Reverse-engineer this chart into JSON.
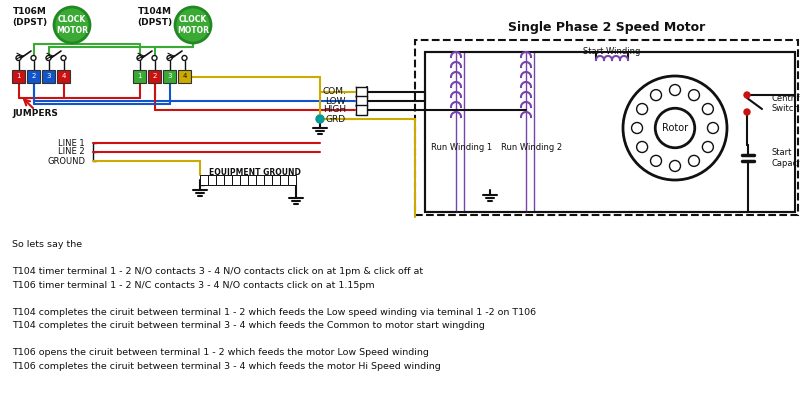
{
  "title": "Single Phase 2 Speed Motor",
  "bg_color": "#ffffff",
  "annotation_text": "So lets say the\n\nT104 timer terminal 1 - 2 N/O contacts 3 - 4 N/O contacts click on at 1pm & click off at\nT106 timer terminal 1 - 2 N/C contacts 3 - 4 N/O contacts click on at 1.15pm\n\nT104 completes the ciruit between terminal 1 - 2 which feeds the Low speed winding via teminal 1 -2 on T106\nT104 completes the ciruit between terminal 3 - 4 which feeds the Common to motor start wingding\n\nT106 opens the ciruit between terminal 1 - 2 which feeds the motor Low Speed winding\nT106 completes the ciruit between terminal 3 - 4 which feeds the motor Hi Speed winding",
  "t106_label": "T106M\n(DPST)",
  "t104_label": "T104M\n(DPST)",
  "clock_label": "CLOCK\nMOTOR",
  "wire_labels": [
    "COM.",
    "LOW",
    "HIGH",
    "GRD"
  ],
  "line_labels": [
    "LINE 1",
    "LINE 2",
    "GROUND"
  ],
  "jumpers_label": "JUMPERS",
  "eq_ground_label": "EQUIPMENT GROUND",
  "start_winding_label": "Start Winding",
  "run_winding1_label": "Run Winding 1",
  "run_winding2_label": "Run Winding 2",
  "rotor_label": "Rotor",
  "centrifugal_label": "Centrifugal\nSwitch",
  "capacitor_label": "Start\nCapacitor",
  "green": "#3aaa35",
  "red": "#cc1111",
  "blue": "#1155cc",
  "yellow": "#ccaa00",
  "purple": "#7744aa",
  "black": "#111111",
  "teal": "#009999"
}
